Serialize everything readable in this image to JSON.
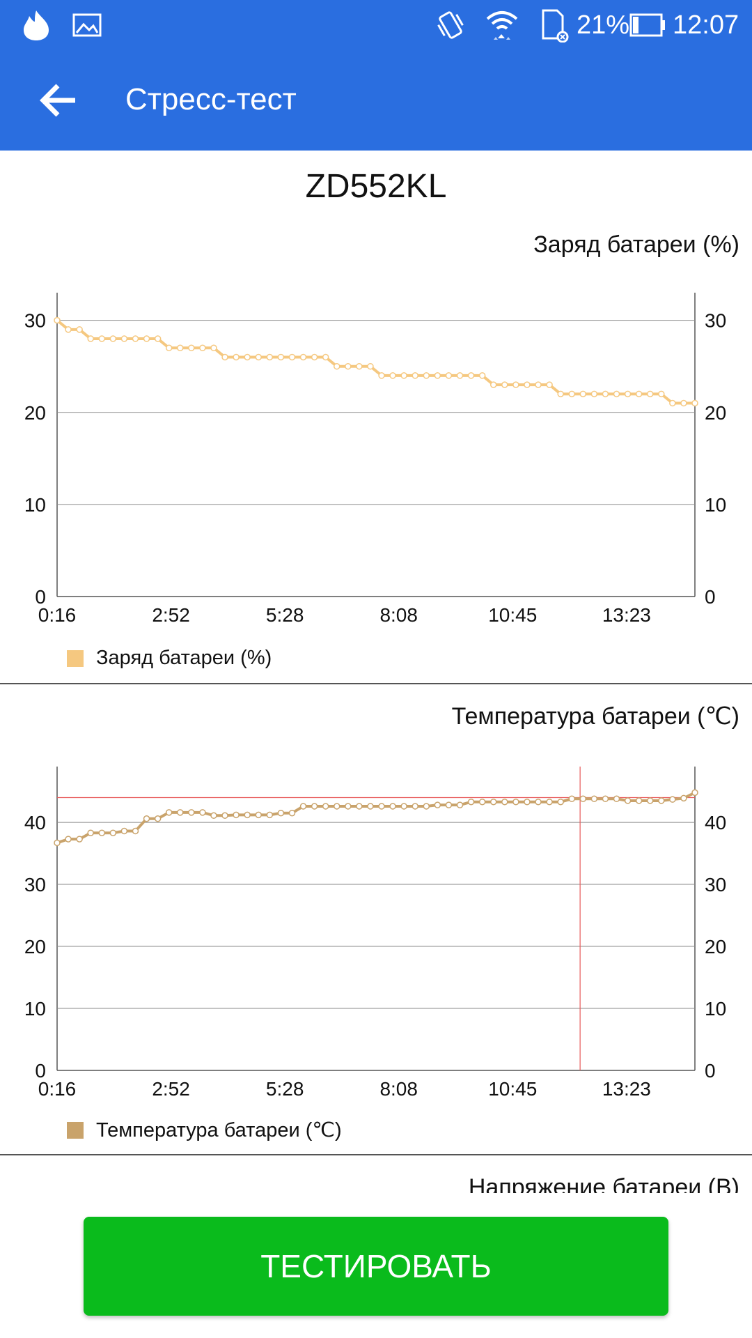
{
  "status_bar": {
    "battery_percent": "21%",
    "time": "12:07",
    "battery_level": 0.21,
    "icons": [
      "fire-icon",
      "image-icon",
      "vibrate-icon",
      "wifi-icon",
      "sd-card-icon",
      "battery-icon"
    ]
  },
  "app_bar": {
    "title": "Стресс-тест",
    "back_icon": "arrow-back-icon"
  },
  "device_name": "ZD552KL",
  "charts": {
    "charge": {
      "title": "Заряд батареи (%)",
      "legend": "Заряд батареи (%)",
      "color": "#f5c880"
    },
    "temperature": {
      "title": "Температура батареи (℃)",
      "legend": "Температура батареи (℃)",
      "color": "#c9a36b",
      "marker_color": "#e85a5a"
    },
    "voltage": {
      "title": "Напряжение батареи (В)"
    }
  },
  "button": {
    "label": "ТЕСТИРОВАТЬ",
    "color": "#0abb1c"
  },
  "chart_data": [
    {
      "type": "line",
      "title": "Заряд батареи (%)",
      "x_ticks": [
        "0:16",
        "2:52",
        "5:28",
        "8:08",
        "10:45",
        "13:23"
      ],
      "y_ticks": [
        0,
        10,
        20,
        30
      ],
      "ylim": [
        0,
        33
      ],
      "grid": true,
      "legend": "bottom-left",
      "series": [
        {
          "name": "Заряд батареи (%)",
          "values": [
            30,
            29,
            29,
            28,
            28,
            28,
            28,
            28,
            28,
            28,
            27,
            27,
            27,
            27,
            27,
            26,
            26,
            26,
            26,
            26,
            26,
            26,
            26,
            26,
            26,
            25,
            25,
            25,
            25,
            24,
            24,
            24,
            24,
            24,
            24,
            24,
            24,
            24,
            24,
            23,
            23,
            23,
            23,
            23,
            23,
            22,
            22,
            22,
            22,
            22,
            22,
            22,
            22,
            22,
            22,
            21,
            21,
            21
          ]
        }
      ]
    },
    {
      "type": "line",
      "title": "Температура батареи (℃)",
      "x_ticks": [
        "0:16",
        "2:52",
        "5:28",
        "8:08",
        "10:45",
        "13:23"
      ],
      "y_ticks": [
        0,
        10,
        20,
        30,
        40
      ],
      "ylim": [
        0,
        49
      ],
      "grid": true,
      "legend": "bottom-left",
      "marker_value": 44,
      "marker_x_fraction": 0.82,
      "series": [
        {
          "name": "Температура батареи (℃)",
          "values": [
            36.7,
            37.3,
            37.3,
            38.3,
            38.3,
            38.3,
            38.6,
            38.6,
            40.6,
            40.6,
            41.6,
            41.6,
            41.6,
            41.6,
            41.1,
            41.1,
            41.2,
            41.2,
            41.2,
            41.2,
            41.5,
            41.5,
            42.6,
            42.6,
            42.6,
            42.6,
            42.6,
            42.6,
            42.6,
            42.6,
            42.6,
            42.6,
            42.6,
            42.6,
            42.8,
            42.8,
            42.8,
            43.3,
            43.3,
            43.3,
            43.3,
            43.3,
            43.3,
            43.3,
            43.3,
            43.3,
            43.8,
            43.8,
            43.8,
            43.8,
            43.8,
            43.5,
            43.5,
            43.5,
            43.5,
            43.7,
            43.9,
            44.8
          ]
        }
      ]
    }
  ]
}
